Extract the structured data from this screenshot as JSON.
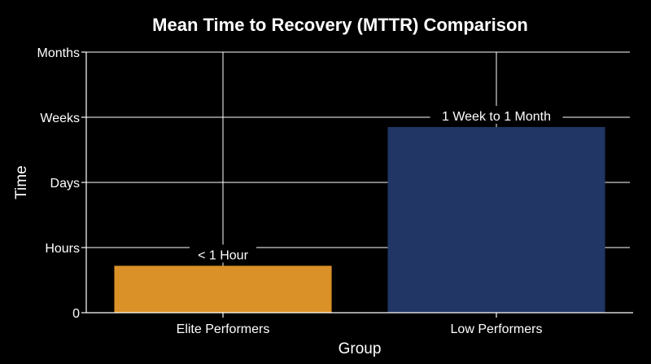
{
  "chart_data": {
    "type": "bar",
    "title": "Mean Time to Recovery (MTTR) Comparison",
    "xlabel": "Group",
    "ylabel": "Time",
    "categories": [
      "Elite Performers",
      "Low Performers"
    ],
    "values": [
      0.72,
      2.85
    ],
    "data_labels": [
      "< 1 Hour",
      "1 Week to 1 Month"
    ],
    "colors": [
      "#DA9128",
      "#213665"
    ],
    "y_ticks": [
      {
        "value": 0,
        "label": "0"
      },
      {
        "value": 1,
        "label": "Hours"
      },
      {
        "value": 2,
        "label": "Days"
      },
      {
        "value": 3,
        "label": "Weeks"
      },
      {
        "value": 4,
        "label": "Months"
      }
    ],
    "ylim": [
      0,
      4
    ],
    "grid": true,
    "background": "#000000"
  }
}
